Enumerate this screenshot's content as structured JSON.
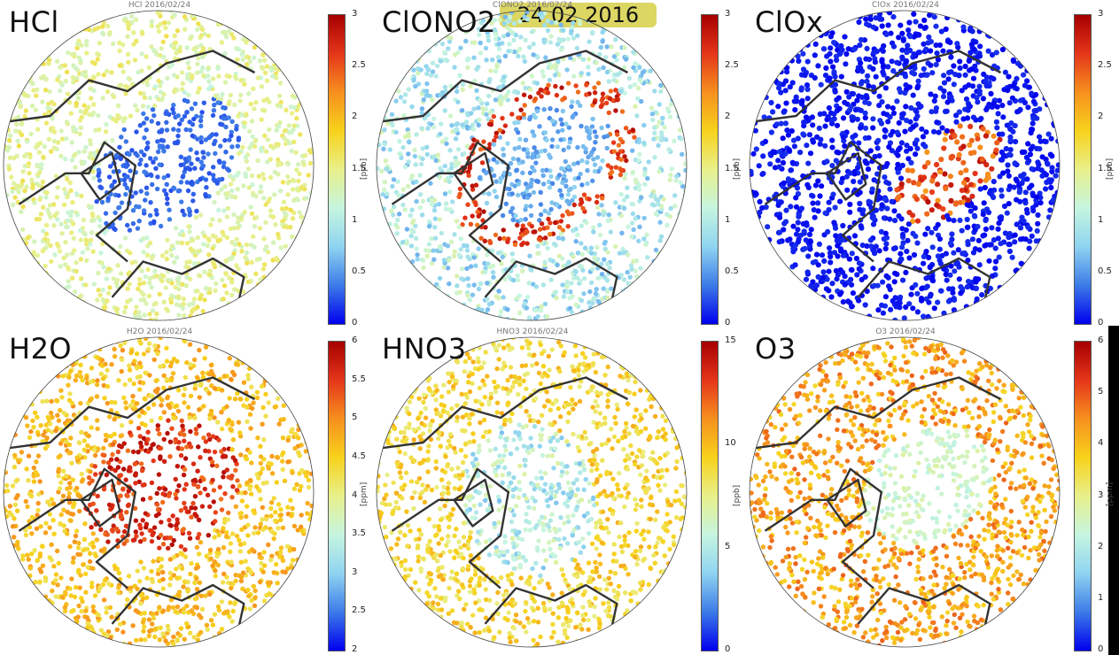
{
  "date_badge": "24.02.2016",
  "panels": [
    {
      "label": "HCl",
      "title": "HCl 2016/02/24",
      "unit": "[ppb]",
      "ticks": [
        "3",
        "2.5",
        "2",
        "1.5",
        "1",
        "0.5",
        "0"
      ],
      "pattern": "hcl"
    },
    {
      "label": "ClONO2",
      "title": "ClONO2 2016/02/24",
      "unit": "[ppb]",
      "ticks": [
        "3",
        "2.5",
        "2",
        "1.5",
        "1",
        "0.5",
        "0"
      ],
      "pattern": "clono2"
    },
    {
      "label": "ClOx",
      "title": "ClOx 2016/02/24",
      "unit": "[ppb]",
      "ticks": [
        "3",
        "2.5",
        "2",
        "1.5",
        "1",
        "0.5",
        "0"
      ],
      "pattern": "clox"
    },
    {
      "label": "H2O",
      "title": "H2O 2016/02/24",
      "unit": "[ppm]",
      "ticks": [
        "6",
        "5.5",
        "5",
        "4.5",
        "4",
        "3.5",
        "3",
        "2.5",
        "2"
      ],
      "pattern": "h2o"
    },
    {
      "label": "HNO3",
      "title": "HNO3 2016/02/24",
      "unit": "[ppb]",
      "ticks": [
        "15",
        "10",
        "5",
        "0"
      ],
      "pattern": "hno3"
    },
    {
      "label": "O3",
      "title": "O3 2016/02/24",
      "unit": "[ppm]",
      "ticks": [
        "6",
        "5",
        "4",
        "3",
        "2",
        "1",
        "0"
      ],
      "pattern": "o3"
    }
  ],
  "colors": {
    "colorbar": [
      "#0000ee",
      "#3d7be8",
      "#8fd4f0",
      "#c6f5e0",
      "#e8f08a",
      "#f7d21c",
      "#f7901e",
      "#e4361a",
      "#a60000"
    ],
    "coastline": "#333333"
  }
}
